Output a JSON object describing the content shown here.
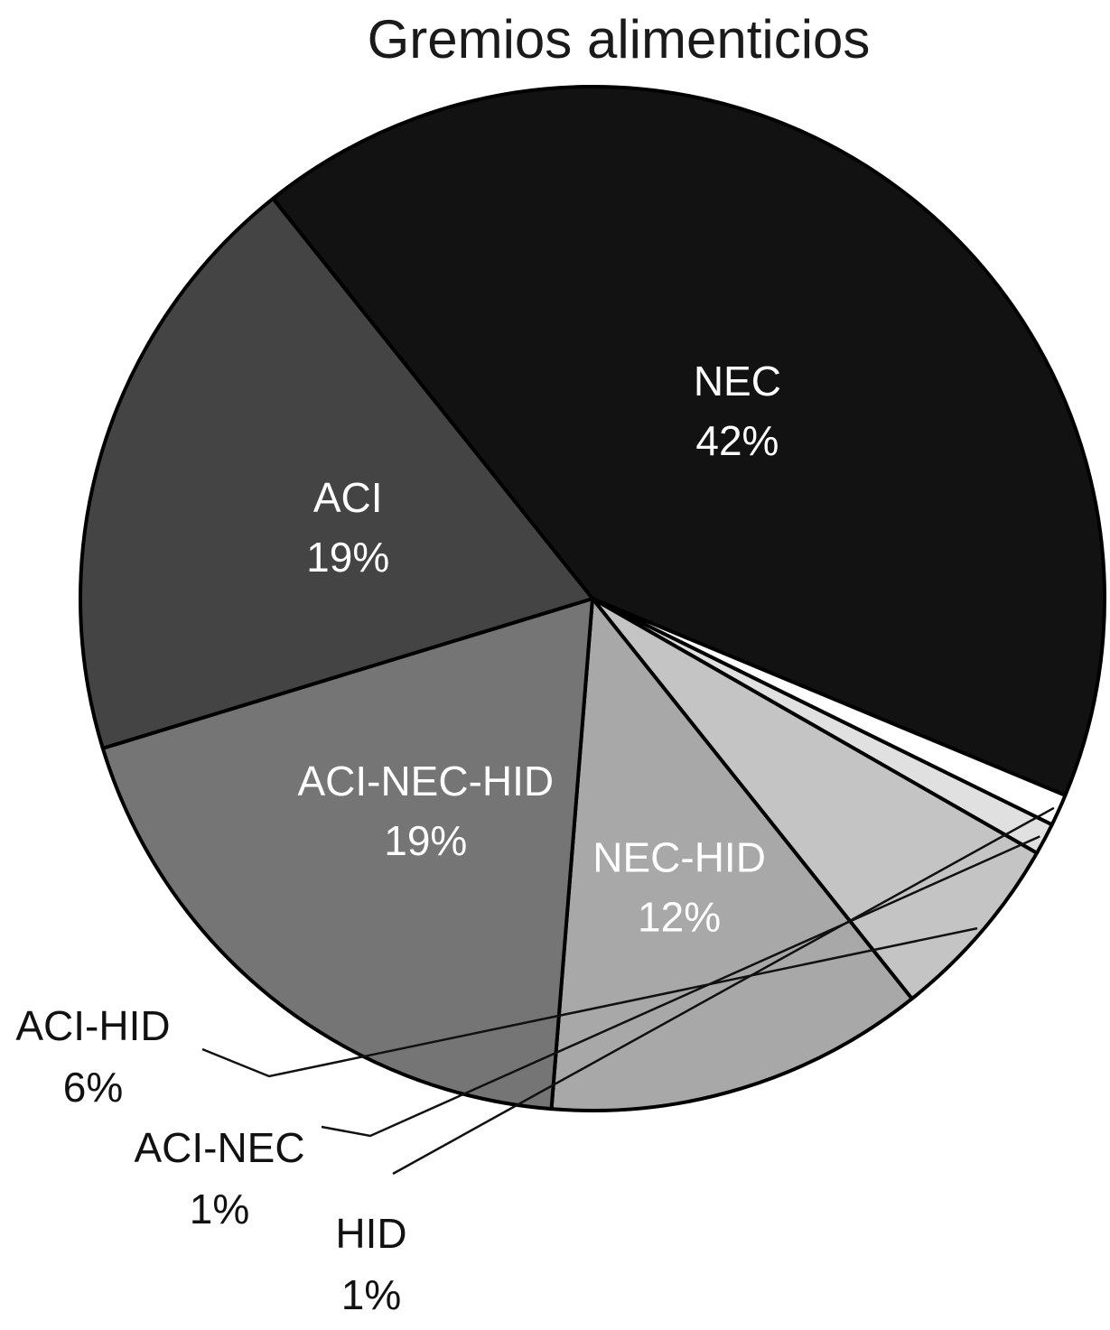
{
  "chart_data": {
    "type": "pie",
    "title": "Gremios alimenticios",
    "slices": [
      {
        "name": "NEC",
        "percent_label": "42%",
        "value": 42,
        "color": "#121212",
        "label_color": "#ffffff",
        "label_placement": "inside"
      },
      {
        "name": "HID",
        "percent_label": "1%",
        "value": 1,
        "color": "#ffffff",
        "label_color": "#111111",
        "label_placement": "outside"
      },
      {
        "name": "ACI-NEC",
        "percent_label": "1%",
        "value": 1,
        "color": "#e0e0e0",
        "label_color": "#111111",
        "label_placement": "outside"
      },
      {
        "name": "ACI-HID",
        "percent_label": "6%",
        "value": 6,
        "color": "#c4c4c4",
        "label_color": "#111111",
        "label_placement": "outside"
      },
      {
        "name": "NEC-HID",
        "percent_label": "12%",
        "value": 12,
        "color": "#a8a8a8",
        "label_color": "#ffffff",
        "label_placement": "inside"
      },
      {
        "name": "ACI-NEC-HID",
        "percent_label": "19%",
        "value": 19,
        "color": "#757575",
        "label_color": "#ffffff",
        "label_placement": "inside"
      },
      {
        "name": "ACI",
        "percent_label": "19%",
        "value": 19,
        "color": "#444444",
        "label_color": "#ffffff",
        "label_placement": "inside"
      }
    ],
    "start_slice": "NEC",
    "direction": "clockwise",
    "legend": "none",
    "outline_color": "#000000"
  }
}
